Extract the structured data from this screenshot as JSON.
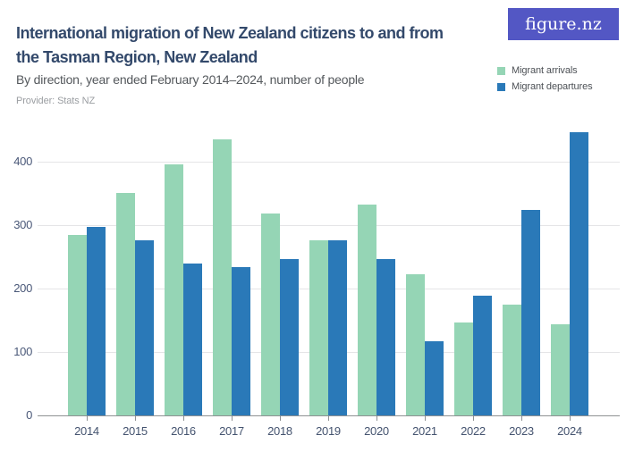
{
  "header": {
    "title_line1": "International migration of New Zealand citizens to and from",
    "title_line2": "the Tasman Region, New Zealand",
    "subtitle": "By direction, year ended February 2014–2024, number of people",
    "provider": "Provider: Stats NZ",
    "logo_text": "figure.nz"
  },
  "legend": {
    "items": [
      {
        "label": "Migrant arrivals",
        "color": "#95d5b5"
      },
      {
        "label": "Migrant departures",
        "color": "#2a79b8"
      }
    ]
  },
  "chart_data": {
    "type": "bar",
    "title": "International migration of New Zealand citizens to and from the Tasman Region, New Zealand",
    "subtitle": "By direction, year ended February 2014–2024, number of people",
    "categories": [
      "2014",
      "2015",
      "2016",
      "2017",
      "2018",
      "2019",
      "2020",
      "2021",
      "2022",
      "2023",
      "2024"
    ],
    "series": [
      {
        "name": "Migrant arrivals",
        "color": "#95d5b5",
        "values": [
          285,
          351,
          396,
          435,
          318,
          276,
          333,
          222,
          147,
          174,
          144
        ]
      },
      {
        "name": "Migrant departures",
        "color": "#2a79b8",
        "values": [
          297,
          276,
          240,
          234,
          246,
          276,
          246,
          117,
          189,
          324,
          447
        ]
      }
    ],
    "xlabel": "",
    "ylabel": "",
    "ylim": [
      0,
      450
    ],
    "yticks": [
      0,
      100,
      200,
      300,
      400
    ],
    "grid": true,
    "legend_position": "top-right"
  },
  "colors": {
    "title": "#33496b",
    "subtitle": "#54585c",
    "provider": "#9b9ea2",
    "logo_background": "#5357c4",
    "logo_text": "#ffffff",
    "gridline": "#e5e5e7",
    "axis_line": "#8f9193",
    "axis_labels": "#4a5878"
  }
}
